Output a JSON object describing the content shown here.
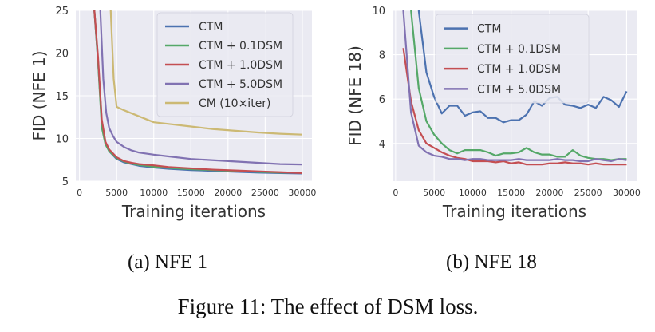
{
  "chart_data": [
    {
      "type": "line",
      "xlabel": "Training iterations",
      "ylabel": "FID (NFE 1)",
      "xlim": [
        -500,
        31300
      ],
      "ylim": [
        5,
        25
      ],
      "xticks": [
        0,
        5000,
        10000,
        15000,
        20000,
        25000,
        30000
      ],
      "xtick_labels": [
        "0",
        "5000",
        "10000",
        "15000",
        "20000",
        "25000",
        "30000"
      ],
      "yticks": [
        5,
        10,
        15,
        20,
        25
      ],
      "ytick_labels": [
        "5",
        "10",
        "15",
        "20",
        "25"
      ],
      "grid": true,
      "background": "#eaeaf2",
      "legend_position": "top-right",
      "caption": "(a) NFE 1",
      "series": [
        {
          "name": "CTM",
          "color": "#4c72b0",
          "x": [
            2000,
            2500,
            3000,
            3500,
            4000,
            5000,
            6000,
            7000,
            8000,
            10000,
            12000,
            15000,
            18000,
            21000,
            24000,
            27000,
            30000
          ],
          "y": [
            25,
            19,
            12,
            9.5,
            8.5,
            7.6,
            7.2,
            7.0,
            6.8,
            6.6,
            6.45,
            6.3,
            6.2,
            6.1,
            6.0,
            5.95,
            5.9
          ]
        },
        {
          "name": "CTM + 0.1DSM",
          "color": "#55a868",
          "x": [
            2000,
            2500,
            3000,
            3500,
            4000,
            5000,
            6000,
            7000,
            8000,
            10000,
            12000,
            15000,
            18000,
            21000,
            24000,
            27000,
            30000
          ],
          "y": [
            25,
            19,
            11.3,
            9.3,
            8.5,
            7.7,
            7.3,
            7.05,
            6.9,
            6.7,
            6.55,
            6.4,
            6.3,
            6.2,
            6.1,
            6.0,
            6.0
          ]
        },
        {
          "name": "CTM + 1.0DSM",
          "color": "#c44e52",
          "x": [
            2000,
            2500,
            3000,
            3500,
            4000,
            5000,
            6000,
            7000,
            8000,
            10000,
            12000,
            15000,
            18000,
            21000,
            24000,
            27000,
            30000
          ],
          "y": [
            25,
            19.5,
            12.2,
            9.6,
            8.7,
            7.8,
            7.35,
            7.15,
            7.0,
            6.85,
            6.65,
            6.5,
            6.35,
            6.25,
            6.15,
            6.05,
            5.95
          ]
        },
        {
          "name": "CTM + 5.0DSM",
          "color": "#8172b2",
          "x": [
            2800,
            3200,
            3600,
            4000,
            4500,
            5000,
            6000,
            7000,
            8000,
            10000,
            12000,
            15000,
            18000,
            21000,
            24000,
            27000,
            30000
          ],
          "y": [
            25,
            17,
            13,
            11.2,
            10.3,
            9.6,
            9.0,
            8.6,
            8.35,
            8.1,
            7.9,
            7.6,
            7.45,
            7.3,
            7.15,
            7.0,
            6.95
          ]
        },
        {
          "name": "CM (10×iter)",
          "color": "#ccb974",
          "x": [
            4200,
            4600,
            5000,
            6000,
            8000,
            10000,
            12000,
            15000,
            18000,
            21000,
            24000,
            27000,
            30000
          ],
          "y": [
            25,
            17,
            13.7,
            13.3,
            12.6,
            11.9,
            11.7,
            11.4,
            11.1,
            10.9,
            10.7,
            10.55,
            10.45
          ]
        }
      ]
    },
    {
      "type": "line",
      "xlabel": "Training iterations",
      "ylabel": "FID (NFE 18)",
      "xlim": [
        -400,
        31300
      ],
      "ylim": [
        2.3,
        10
      ],
      "xticks": [
        0,
        5000,
        10000,
        15000,
        20000,
        25000,
        30000
      ],
      "xtick_labels": [
        "0",
        "5000",
        "10000",
        "15000",
        "20000",
        "25000",
        "30000"
      ],
      "yticks": [
        4,
        6,
        8,
        10
      ],
      "ytick_labels": [
        "4",
        "6",
        "8",
        "10"
      ],
      "grid": true,
      "background": "#eaeaf2",
      "legend_position": "top-left",
      "caption": "(b) NFE 18",
      "series": [
        {
          "name": "CTM",
          "color": "#4c72b0",
          "x": [
            3000,
            4000,
            5000,
            6000,
            7000,
            8000,
            9000,
            10000,
            11000,
            12000,
            13000,
            14000,
            15000,
            16000,
            17000,
            18000,
            19000,
            20000,
            21000,
            22000,
            23000,
            24000,
            25000,
            26000,
            27000,
            28000,
            29000,
            30000
          ],
          "y": [
            10,
            7.2,
            6.1,
            5.35,
            5.7,
            5.7,
            5.25,
            5.4,
            5.45,
            5.15,
            5.15,
            4.95,
            5.05,
            5.05,
            5.3,
            5.9,
            5.7,
            6.05,
            6.1,
            5.75,
            5.7,
            5.6,
            5.75,
            5.6,
            6.1,
            5.95,
            5.65,
            6.35
          ]
        },
        {
          "name": "CTM + 0.1DSM",
          "color": "#55a868",
          "x": [
            2000,
            3000,
            4000,
            5000,
            6000,
            7000,
            8000,
            9000,
            10000,
            11000,
            12000,
            13000,
            14000,
            15000,
            16000,
            17000,
            18000,
            19000,
            20000,
            21000,
            22000,
            23000,
            24000,
            25000,
            26000,
            27000,
            28000,
            29000,
            30000
          ],
          "y": [
            10,
            6.5,
            5.0,
            4.4,
            4.0,
            3.7,
            3.55,
            3.7,
            3.7,
            3.7,
            3.6,
            3.45,
            3.55,
            3.55,
            3.6,
            3.8,
            3.6,
            3.5,
            3.5,
            3.4,
            3.4,
            3.7,
            3.45,
            3.35,
            3.3,
            3.3,
            3.25,
            3.3,
            3.3
          ]
        },
        {
          "name": "CTM + 1.0DSM",
          "color": "#c44e52",
          "x": [
            1000,
            2000,
            3000,
            4000,
            5000,
            6000,
            7000,
            8000,
            9000,
            10000,
            11000,
            12000,
            13000,
            14000,
            15000,
            16000,
            17000,
            18000,
            19000,
            20000,
            21000,
            22000,
            23000,
            24000,
            25000,
            26000,
            27000,
            28000,
            29000,
            30000
          ],
          "y": [
            8.3,
            5.9,
            4.6,
            4.0,
            3.8,
            3.6,
            3.45,
            3.35,
            3.3,
            3.2,
            3.2,
            3.2,
            3.15,
            3.2,
            3.1,
            3.15,
            3.05,
            3.05,
            3.05,
            3.1,
            3.1,
            3.15,
            3.1,
            3.1,
            3.05,
            3.1,
            3.05,
            3.05,
            3.05,
            3.05
          ]
        },
        {
          "name": "CTM + 5.0DSM",
          "color": "#8172b2",
          "x": [
            1000,
            2000,
            3000,
            4000,
            5000,
            6000,
            7000,
            8000,
            9000,
            10000,
            11000,
            12000,
            13000,
            14000,
            15000,
            16000,
            17000,
            18000,
            19000,
            20000,
            21000,
            22000,
            23000,
            24000,
            25000,
            26000,
            27000,
            28000,
            29000,
            30000
          ],
          "y": [
            10,
            5.4,
            3.9,
            3.6,
            3.45,
            3.4,
            3.3,
            3.3,
            3.25,
            3.3,
            3.3,
            3.25,
            3.25,
            3.25,
            3.25,
            3.3,
            3.25,
            3.25,
            3.25,
            3.25,
            3.3,
            3.25,
            3.25,
            3.2,
            3.2,
            3.3,
            3.25,
            3.2,
            3.3,
            3.25
          ]
        }
      ]
    }
  ],
  "figure_caption": "Figure 11: The effect of DSM loss."
}
